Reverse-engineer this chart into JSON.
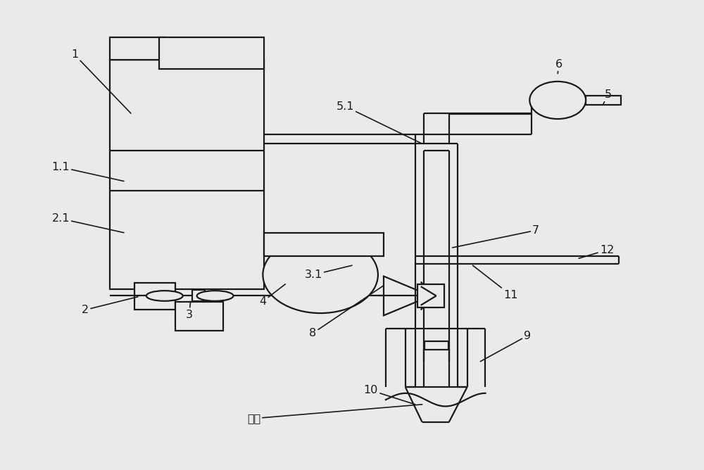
{
  "bg_color": "#e8eaec",
  "line_color": "#1a1a1a",
  "lw": 1.6,
  "fig_width": 10.0,
  "fig_height": 6.68,
  "label_positions": {
    "1": [
      0.105,
      0.885,
      0.185,
      0.76
    ],
    "1.1": [
      0.085,
      0.645,
      0.175,
      0.615
    ],
    "2.1": [
      0.085,
      0.535,
      0.175,
      0.505
    ],
    "2": [
      0.12,
      0.34,
      0.195,
      0.368
    ],
    "3": [
      0.268,
      0.33,
      0.27,
      0.358
    ],
    "4": [
      0.373,
      0.358,
      0.405,
      0.395
    ],
    "3.1": [
      0.445,
      0.415,
      0.5,
      0.435
    ],
    "5.1": [
      0.49,
      0.775,
      0.6,
      0.695
    ],
    "5": [
      0.865,
      0.8,
      0.858,
      0.78
    ],
    "6": [
      0.795,
      0.865,
      0.793,
      0.845
    ],
    "7": [
      0.762,
      0.51,
      0.643,
      0.473
    ],
    "8": [
      0.444,
      0.29,
      0.545,
      0.392
    ],
    "9": [
      0.75,
      0.285,
      0.683,
      0.23
    ],
    "10": [
      0.527,
      0.168,
      0.59,
      0.138
    ],
    "11": [
      0.726,
      0.372,
      0.672,
      0.435
    ],
    "12": [
      0.863,
      0.468,
      0.823,
      0.45
    ],
    "oil_well": [
      0.36,
      0.108,
      0.6,
      0.138
    ]
  }
}
